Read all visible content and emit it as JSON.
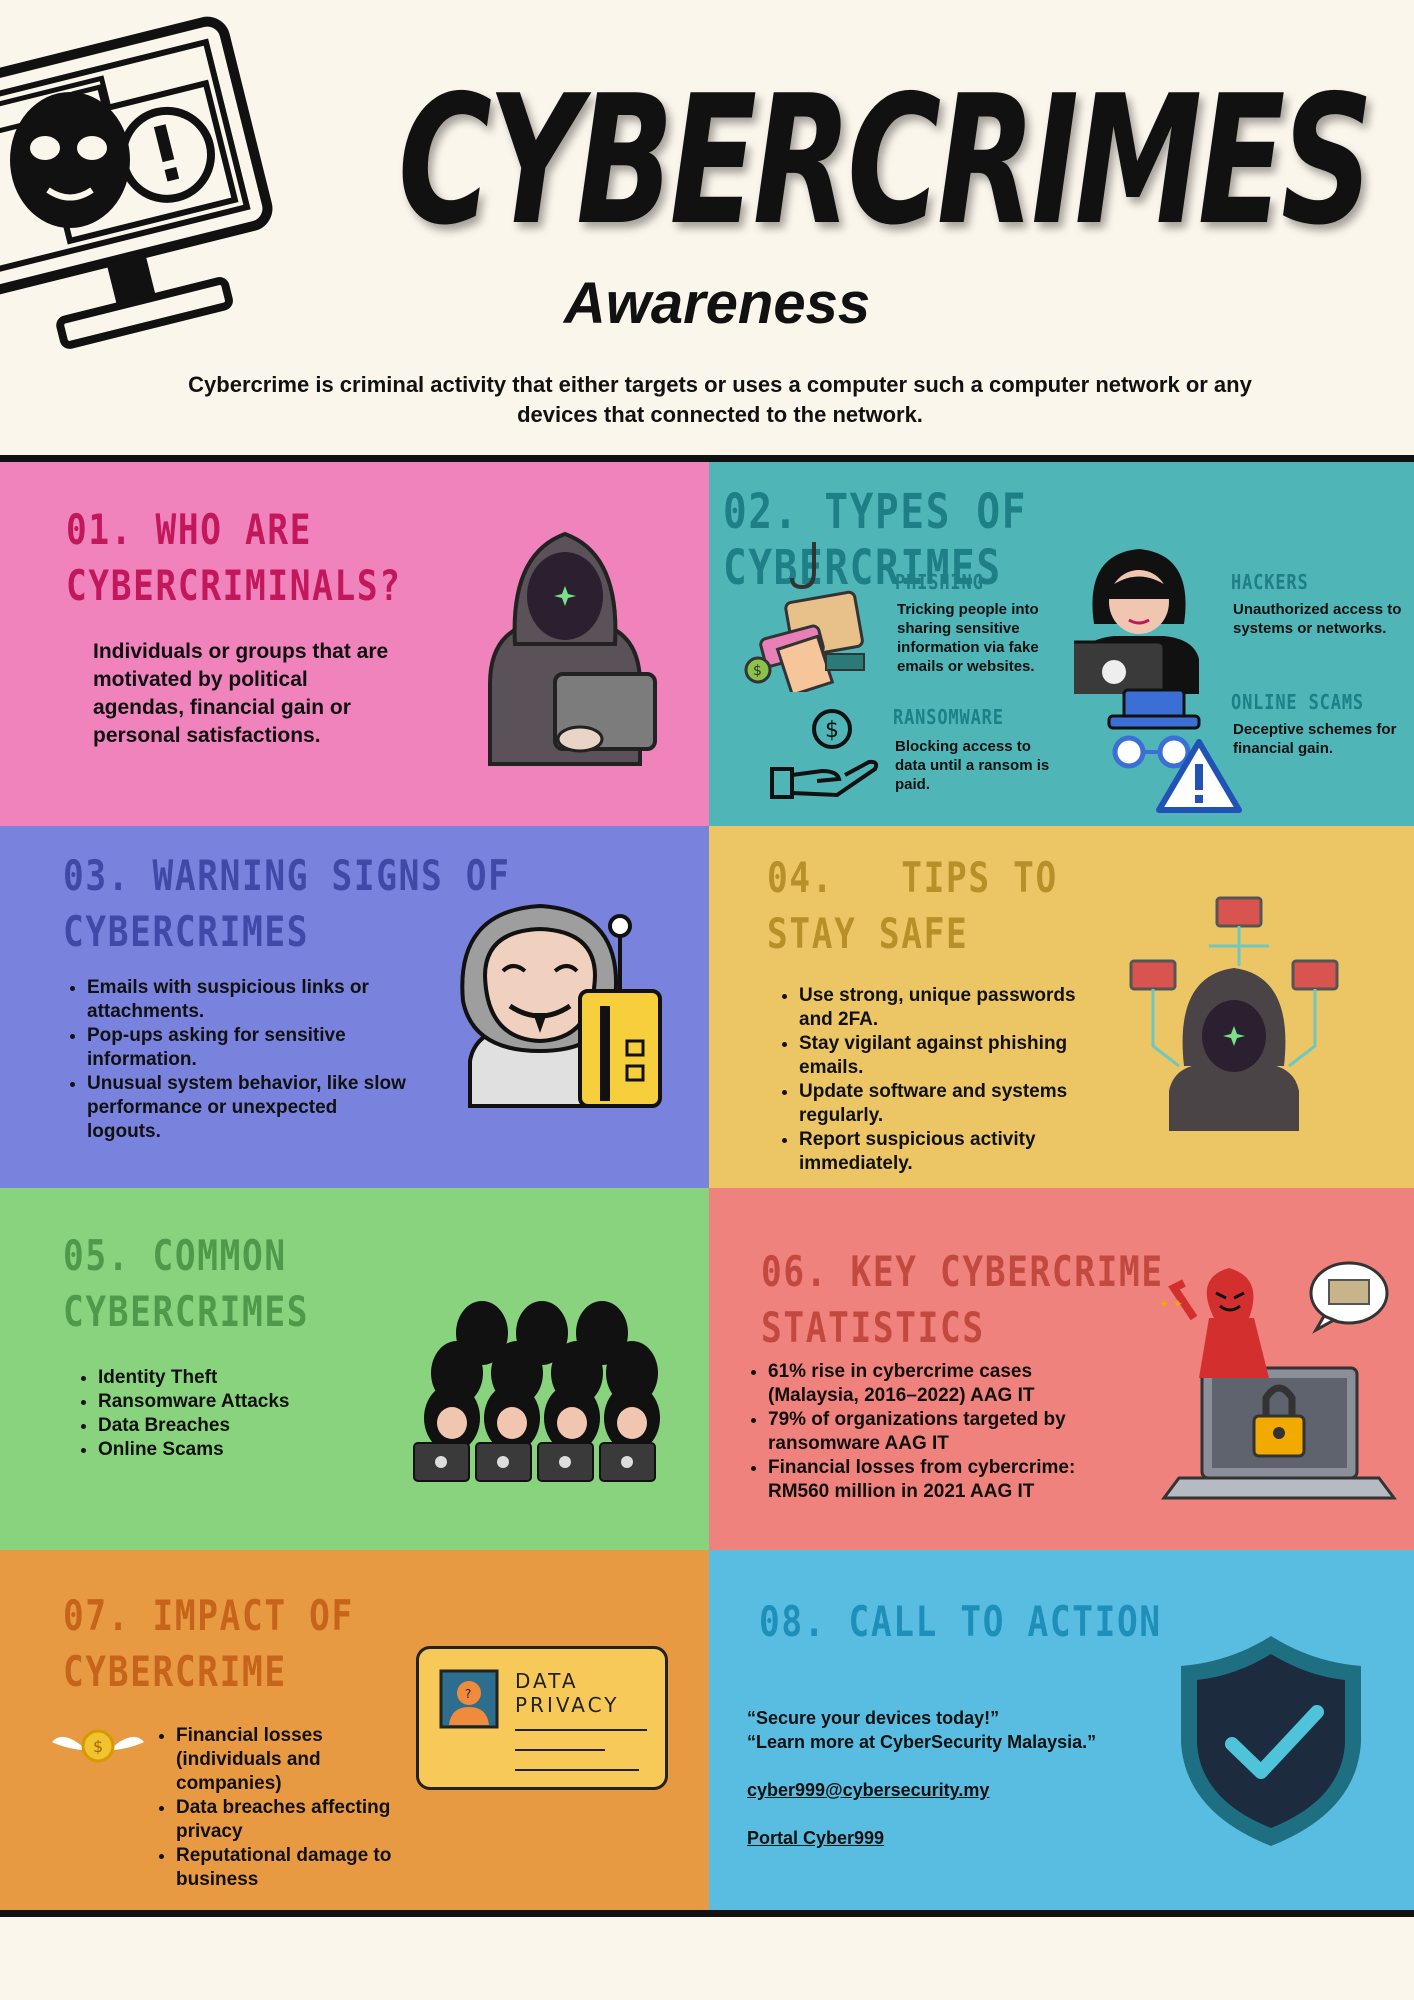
{
  "header": {
    "title": "CYBERCRIMES",
    "subtitle": "Awareness",
    "intro": "Cybercrime is criminal activity that either targets or uses a computer such a computer network or any devices that connected to the network."
  },
  "sections": {
    "s1": {
      "heading_line1": "01. WHO ARE",
      "heading_line2": "CYBERCRIMINALS?",
      "body": "Individuals or groups that are motivated by political agendas, financial gain or personal satisfactions.",
      "icon": "hooded-hacker-laptop-icon",
      "color": "#f083bb",
      "heading_color": "#c2185b"
    },
    "s2": {
      "heading": "02. TYPES OF CYBERCRIMES",
      "color": "#4fb5b7",
      "heading_color": "#1e7f87",
      "types": [
        {
          "label": "PHISHING",
          "text": "Tricking people into sharing sensitive information via fake emails or websites."
        },
        {
          "label": "HACKERS",
          "text": "Unauthorized access to systems or networks."
        },
        {
          "label": "RANSOMWARE",
          "text": "Blocking access to data until a ransom is paid."
        },
        {
          "label": "ONLINE SCAMS",
          "text": "Deceptive schemes for financial gain."
        }
      ]
    },
    "s3": {
      "heading_line1": "03. WARNING SIGNS OF",
      "heading_line2": "CYBERCRIMES",
      "color": "#7982dc",
      "heading_color": "#3f4aa8",
      "items": [
        "Emails with suspicious links or attachments.",
        "Pop-ups asking for sensitive information.",
        "Unusual system behavior, like slow performance or unexpected logouts."
      ]
    },
    "s4": {
      "heading_line1": "04.   TIPS TO",
      "heading_line2": "STAY SAFE",
      "color": "#ecc664",
      "heading_color": "#b8902a",
      "items": [
        "Use strong, unique passwords and 2FA.",
        " Stay vigilant against phishing emails.",
        " Update software and systems regularly.",
        " Report suspicious activity immediately."
      ]
    },
    "s5": {
      "heading_line1": "05. COMMON",
      "heading_line2": "CYBERCRIMES",
      "color": "#8ad37e",
      "heading_color": "#4f9a4a",
      "items": [
        "Identity Theft",
        "Ransomware Attacks",
        "Data Breaches",
        "Online Scams"
      ]
    },
    "s6": {
      "heading_line1": "06. KEY CYBERCRIME",
      "heading_line2": "STATISTICS",
      "color": "#ef827c",
      "heading_color": "#c2493f",
      "items": [
        "61% rise in cybercrime cases (Malaysia, 2016–2022) AAG IT",
        "79% of organizations targeted by ransomware AAG IT",
        "Financial losses from cybercrime: RM560 million in 2021 AAG IT"
      ]
    },
    "s7": {
      "heading_line1": "07. IMPACT OF",
      "heading_line2": "CYBERCRIME",
      "color": "#e89a43",
      "heading_color": "#c5641a",
      "card_line1": "DATA",
      "card_line2": "PRIVACY",
      "items": [
        "Financial losses (individuals and companies)",
        "Data breaches affecting privacy",
        "Reputational damage to business"
      ]
    },
    "s8": {
      "heading": "08. CALL TO ACTION",
      "color": "#58bde0",
      "heading_color": "#1d8fb8",
      "quote1": "“Secure your devices today!”",
      "quote2": "“Learn more at CyberSecurity Malaysia.”",
      "email": "cyber999@cybersecurity.my",
      "portal": "Portal Cyber999"
    }
  }
}
